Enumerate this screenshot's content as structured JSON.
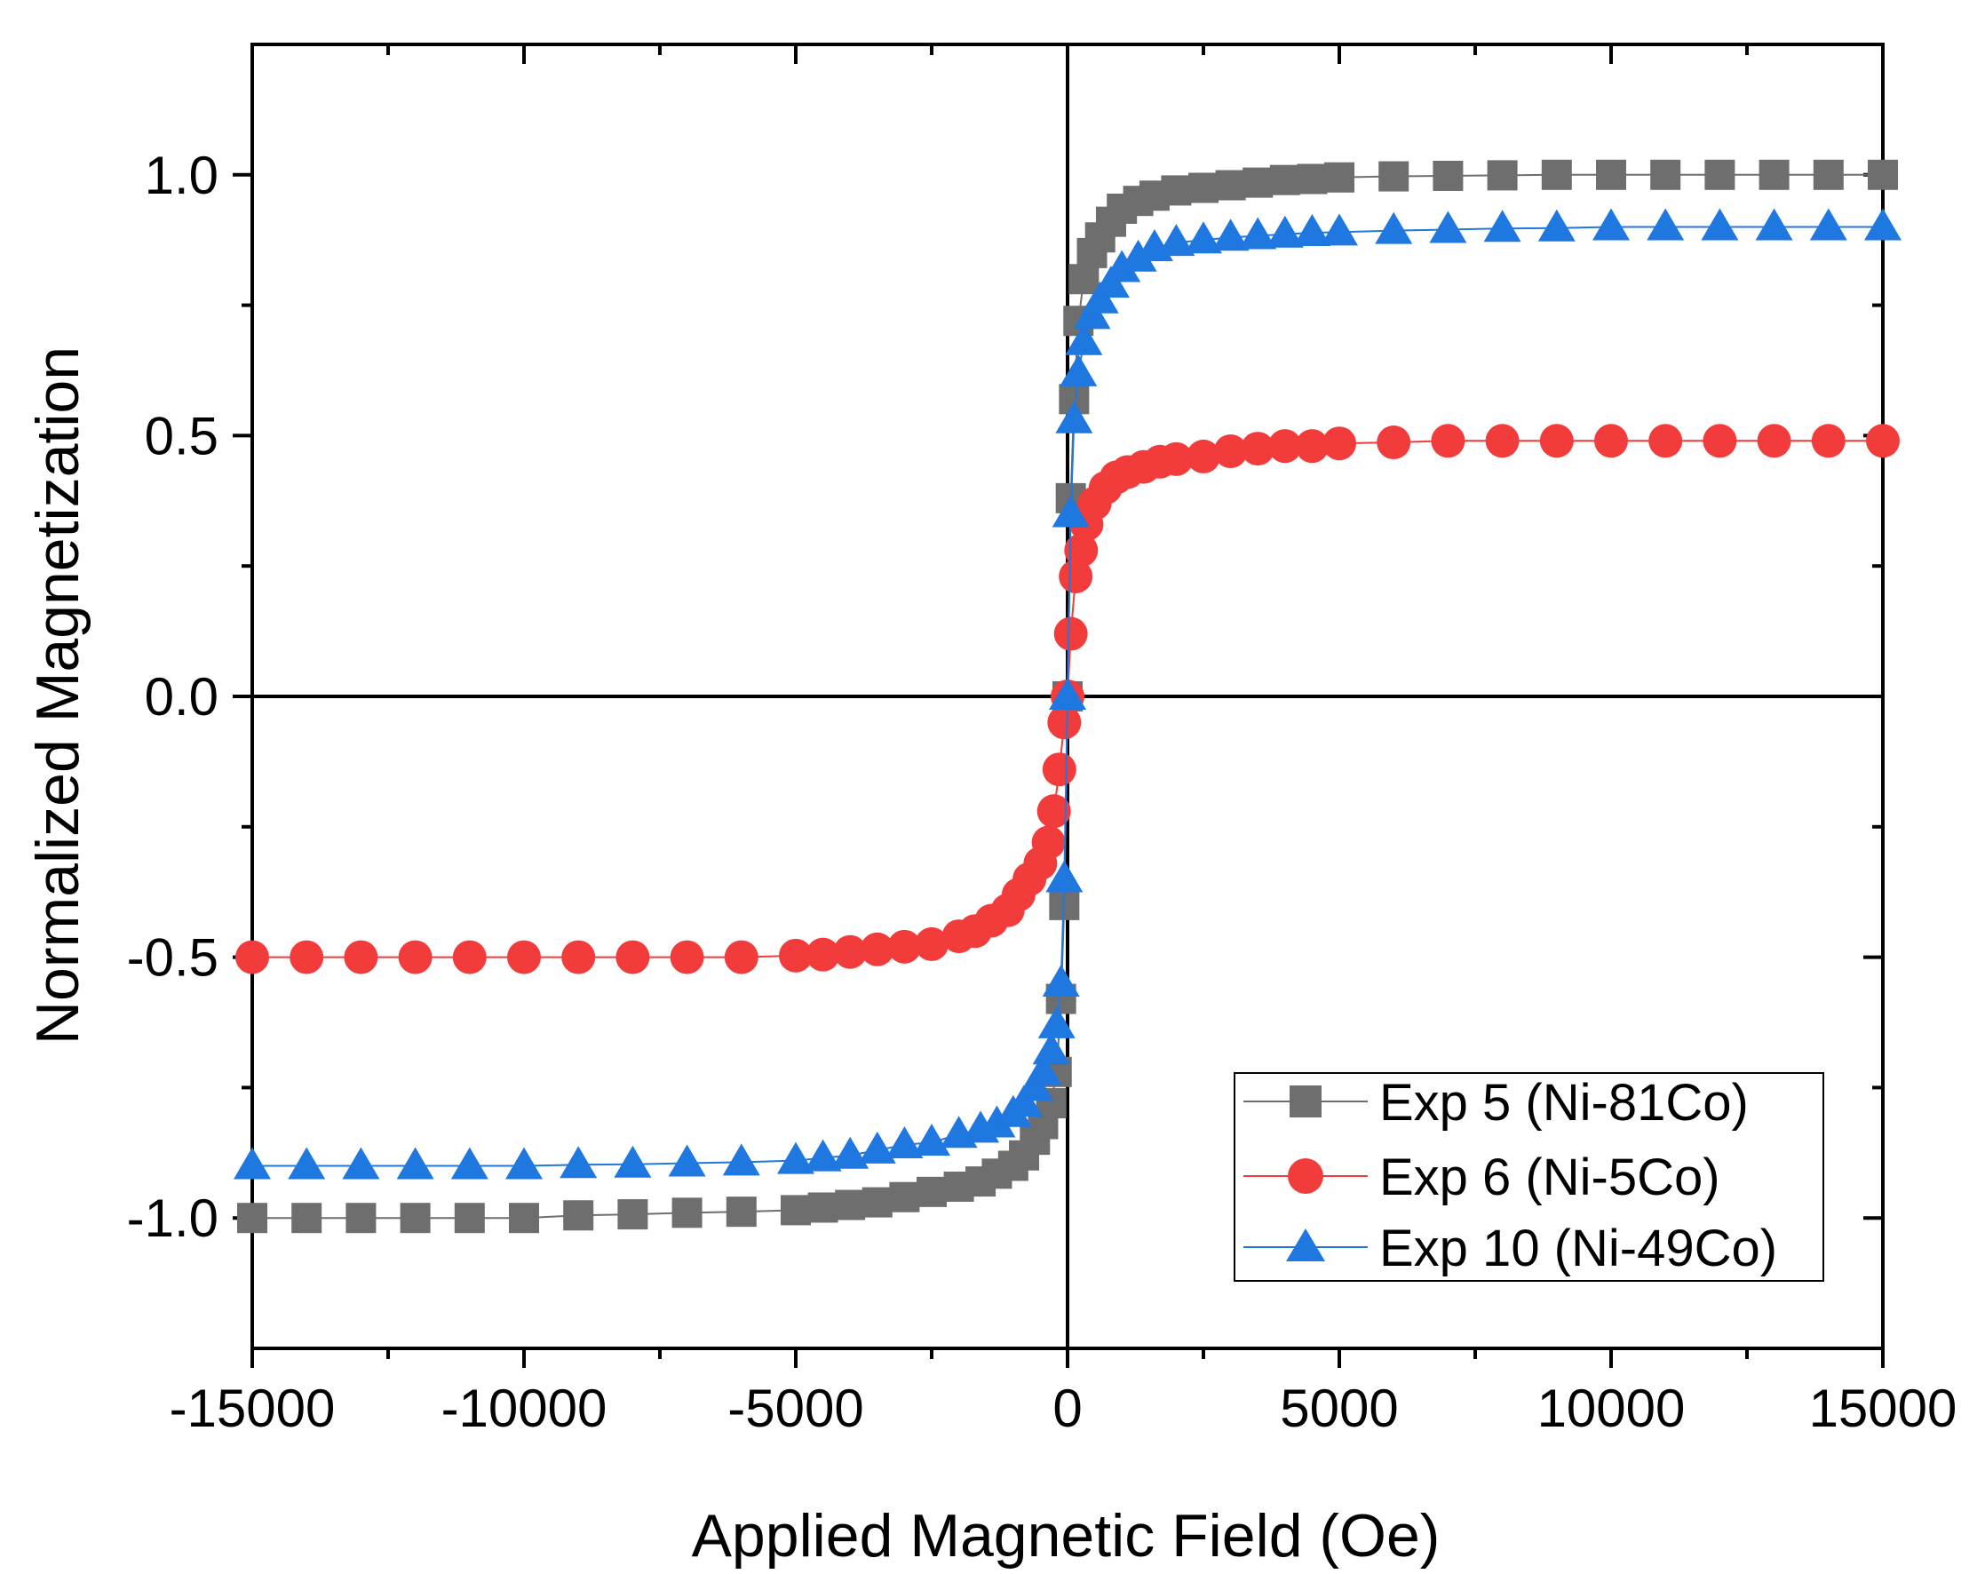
{
  "chart_data": {
    "type": "scatter",
    "title": "",
    "xlabel": "Applied Magnetic Field (Oe)",
    "ylabel": "Normalized Magnetization",
    "xlim": [
      -15000,
      15000
    ],
    "ylim": [
      -1.25,
      1.25
    ],
    "xticks": [
      -15000,
      -10000,
      -5000,
      0,
      5000,
      10000,
      15000
    ],
    "xtick_labels": [
      "-15000",
      "-10000",
      "-5000",
      "0",
      "5000",
      "10000",
      "15000"
    ],
    "yticks": [
      -1.0,
      -0.5,
      0.0,
      0.5,
      1.0
    ],
    "ytick_labels": [
      "-1.0",
      "-0.5",
      "0.0",
      "0.5",
      "1.0"
    ],
    "legend_position": "bottom-right",
    "series": [
      {
        "name": "Exp 5 (Ni-81Co)",
        "color": "#6e6e6e",
        "marker": "square",
        "x": [
          -15000,
          -14000,
          -13000,
          -12000,
          -11000,
          -10000,
          -9000,
          -8000,
          -7000,
          -6000,
          -5000,
          -4500,
          -4000,
          -3500,
          -3000,
          -2500,
          -2000,
          -1600,
          -1300,
          -1000,
          -800,
          -600,
          -450,
          -300,
          -200,
          -120,
          -60,
          0,
          60,
          120,
          200,
          300,
          450,
          600,
          800,
          1000,
          1300,
          1600,
          2000,
          2500,
          3000,
          3500,
          4000,
          4500,
          5000,
          6000,
          7000,
          8000,
          9000,
          10000,
          11000,
          12000,
          13000,
          14000,
          15000
        ],
        "y": [
          -1.0,
          -1.0,
          -1.0,
          -1.0,
          -1.0,
          -1.0,
          -0.995,
          -0.993,
          -0.99,
          -0.988,
          -0.985,
          -0.98,
          -0.975,
          -0.97,
          -0.96,
          -0.95,
          -0.94,
          -0.93,
          -0.915,
          -0.9,
          -0.88,
          -0.85,
          -0.82,
          -0.78,
          -0.72,
          -0.58,
          -0.4,
          0.0,
          0.38,
          0.57,
          0.72,
          0.8,
          0.85,
          0.88,
          0.91,
          0.935,
          0.95,
          0.96,
          0.97,
          0.975,
          0.98,
          0.985,
          0.99,
          0.992,
          0.995,
          0.997,
          0.998,
          0.999,
          1.0,
          1.0,
          1.0,
          1.0,
          1.0,
          1.0,
          1.0
        ]
      },
      {
        "name": "Exp 6 (Ni-5Co)",
        "color": "#f23c3c",
        "marker": "circle",
        "x": [
          -15000,
          -14000,
          -13000,
          -12000,
          -11000,
          -10000,
          -9000,
          -8000,
          -7000,
          -6000,
          -5000,
          -4500,
          -4000,
          -3500,
          -3000,
          -2500,
          -2000,
          -1700,
          -1400,
          -1100,
          -900,
          -700,
          -500,
          -350,
          -250,
          -150,
          -60,
          0,
          60,
          150,
          250,
          350,
          500,
          700,
          900,
          1100,
          1400,
          1700,
          2000,
          2500,
          3000,
          3500,
          4000,
          4500,
          5000,
          6000,
          7000,
          8000,
          9000,
          10000,
          11000,
          12000,
          13000,
          14000,
          15000
        ],
        "y": [
          -0.5,
          -0.5,
          -0.5,
          -0.5,
          -0.5,
          -0.5,
          -0.5,
          -0.5,
          -0.5,
          -0.5,
          -0.497,
          -0.495,
          -0.49,
          -0.485,
          -0.48,
          -0.475,
          -0.46,
          -0.45,
          -0.43,
          -0.41,
          -0.38,
          -0.35,
          -0.32,
          -0.28,
          -0.22,
          -0.14,
          -0.05,
          0.0,
          0.12,
          0.23,
          0.28,
          0.33,
          0.37,
          0.4,
          0.42,
          0.43,
          0.44,
          0.45,
          0.455,
          0.46,
          0.47,
          0.475,
          0.48,
          0.48,
          0.485,
          0.487,
          0.49,
          0.49,
          0.49,
          0.49,
          0.49,
          0.49,
          0.49,
          0.49,
          0.49
        ]
      },
      {
        "name": "Exp 10 (Ni-49Co)",
        "color": "#1f77e0",
        "marker": "triangle",
        "x": [
          -15000,
          -14000,
          -13000,
          -12000,
          -11000,
          -10000,
          -9000,
          -8000,
          -7000,
          -6000,
          -5000,
          -4500,
          -4000,
          -3500,
          -3000,
          -2500,
          -2000,
          -1600,
          -1300,
          -1000,
          -800,
          -600,
          -450,
          -300,
          -200,
          -120,
          -60,
          0,
          60,
          120,
          200,
          300,
          450,
          600,
          800,
          1000,
          1300,
          1600,
          2000,
          2500,
          3000,
          3500,
          4000,
          4500,
          5000,
          6000,
          7000,
          8000,
          9000,
          10000,
          11000,
          12000,
          13000,
          14000,
          15000
        ],
        "y": [
          -0.9,
          -0.9,
          -0.9,
          -0.9,
          -0.9,
          -0.9,
          -0.898,
          -0.897,
          -0.895,
          -0.893,
          -0.89,
          -0.885,
          -0.88,
          -0.87,
          -0.86,
          -0.855,
          -0.84,
          -0.83,
          -0.82,
          -0.8,
          -0.78,
          -0.75,
          -0.72,
          -0.68,
          -0.63,
          -0.55,
          -0.35,
          0.0,
          0.35,
          0.53,
          0.62,
          0.68,
          0.73,
          0.76,
          0.79,
          0.82,
          0.84,
          0.86,
          0.87,
          0.875,
          0.88,
          0.883,
          0.886,
          0.889,
          0.89,
          0.893,
          0.895,
          0.897,
          0.898,
          0.9,
          0.9,
          0.9,
          0.9,
          0.9,
          0.9
        ]
      }
    ]
  }
}
